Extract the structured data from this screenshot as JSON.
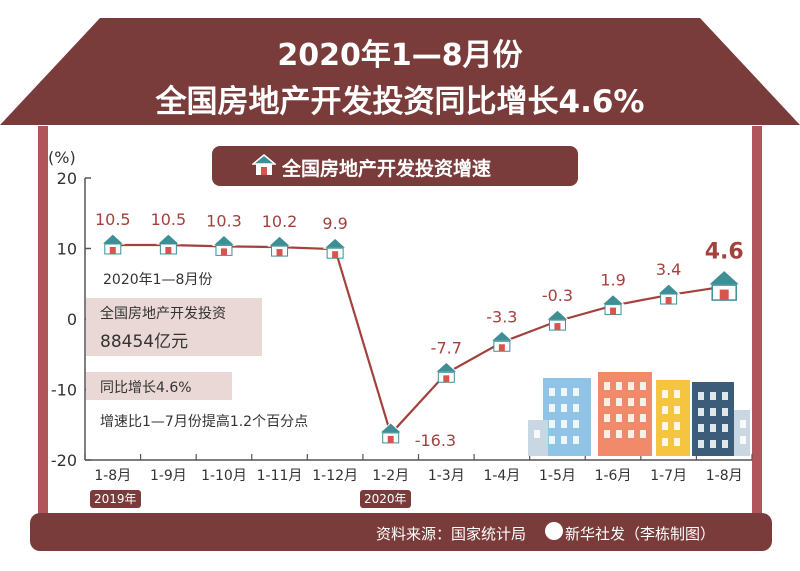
{
  "header": {
    "title_line1": "2020年1—8月份",
    "title_line2": "全国房地产开发投资同比增长4.6%"
  },
  "banner": {
    "label": "全国房地产开发投资增速",
    "icon": "house-icon"
  },
  "annotations": {
    "period": "2020年1—8月份",
    "investment_label": "全国房地产开发投资",
    "investment_value": "88454亿元",
    "growth": "同比增长4.6%",
    "speed_note": "增速比1—7月份提高1.2个百分点"
  },
  "footer": {
    "source": "资料来源：国家统计局",
    "credit": "新华社发（李栋制图）"
  },
  "year_labels": {
    "y2019": "2019年",
    "y2020": "2020年"
  },
  "colors": {
    "roof": "#7a3c3a",
    "wall": "#b0565b",
    "line": "#a3413d",
    "label": "#a3413d",
    "house_roof": "#3e8f95",
    "house_body": "#ffffff",
    "house_door": "#d9534f"
  },
  "chart_data": {
    "type": "line",
    "title": "全国房地产开发投资增速",
    "unit_label": "(%)",
    "categories": [
      "1-8月",
      "1-9月",
      "1-10月",
      "1-11月",
      "1-12月",
      "1-2月",
      "1-3月",
      "1-4月",
      "1-5月",
      "1-6月",
      "1-7月",
      "1-8月"
    ],
    "values": [
      10.5,
      10.5,
      10.3,
      10.2,
      9.9,
      -16.3,
      -7.7,
      -3.3,
      -0.3,
      1.9,
      3.4,
      4.6
    ],
    "value_labels": [
      "10.5",
      "10.5",
      "10.3",
      "10.2",
      "9.9",
      "-16.3",
      "-7.7",
      "-3.3",
      "-0.3",
      "1.9",
      "3.4",
      "4.6"
    ],
    "ylim": [
      -20,
      20
    ],
    "yticks": [
      20,
      10,
      0,
      -10,
      -20
    ],
    "ytick_labels": [
      "20",
      "10",
      "0",
      "-10",
      "-20"
    ],
    "grid": false,
    "legend": "none"
  }
}
